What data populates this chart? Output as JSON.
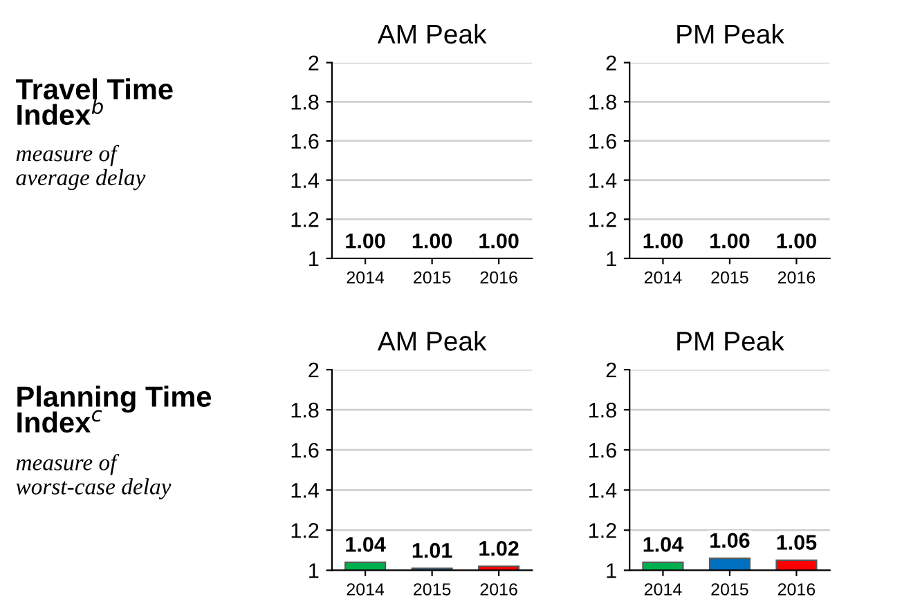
{
  "chart_data": [
    {
      "type": "bar",
      "title": "AM Peak",
      "categories": [
        "2014",
        "2015",
        "2016"
      ],
      "values": [
        1.0,
        1.0,
        1.0
      ],
      "value_labels": [
        "1.00",
        "1.00",
        "1.00"
      ],
      "colors": [
        "#00b050",
        "#0070c0",
        "#ff0000"
      ],
      "ylim": [
        1,
        2
      ],
      "yticks": [
        1,
        1.2,
        1.4,
        1.6,
        1.8,
        2
      ],
      "grid": "y",
      "legend": false,
      "annotations": [
        "Travel Time\nIndex$^{b}$",
        "measure of\naverage delay"
      ]
    },
    {
      "type": "bar",
      "title": "PM Peak",
      "categories": [
        "2014",
        "2015",
        "2016"
      ],
      "values": [
        1.0,
        1.0,
        1.0
      ],
      "value_labels": [
        "1.00",
        "1.00",
        "1.00"
      ],
      "colors": [
        "#00b050",
        "#0070c0",
        "#ff0000"
      ],
      "ylim": [
        1,
        2
      ],
      "yticks": [
        1,
        1.2,
        1.4,
        1.6,
        1.8,
        2
      ],
      "grid": "y",
      "legend": false
    },
    {
      "type": "bar",
      "title": "AM Peak",
      "categories": [
        "2014",
        "2015",
        "2016"
      ],
      "values": [
        1.04,
        1.01,
        1.02
      ],
      "value_labels": [
        "1.04",
        "1.01",
        "1.02"
      ],
      "colors": [
        "#00b050",
        "#0070c0",
        "#ff0000"
      ],
      "ylim": [
        1,
        2
      ],
      "yticks": [
        1,
        1.2,
        1.4,
        1.6,
        1.8,
        2
      ],
      "grid": "y",
      "legend": false,
      "annotations": [
        "Planning Time\nIndex$^{c}$",
        "measure of\nworst-case delay"
      ]
    },
    {
      "type": "bar",
      "title": "PM Peak",
      "categories": [
        "2014",
        "2015",
        "2016"
      ],
      "values": [
        1.04,
        1.06,
        1.05
      ],
      "value_labels": [
        "1.04",
        "1.06",
        "1.05"
      ],
      "colors": [
        "#00b050",
        "#0070c0",
        "#ff0000"
      ],
      "ylim": [
        1,
        2
      ],
      "yticks": [
        1,
        1.2,
        1.4,
        1.6,
        1.8,
        2
      ],
      "grid": "y",
      "legend": false
    }
  ]
}
